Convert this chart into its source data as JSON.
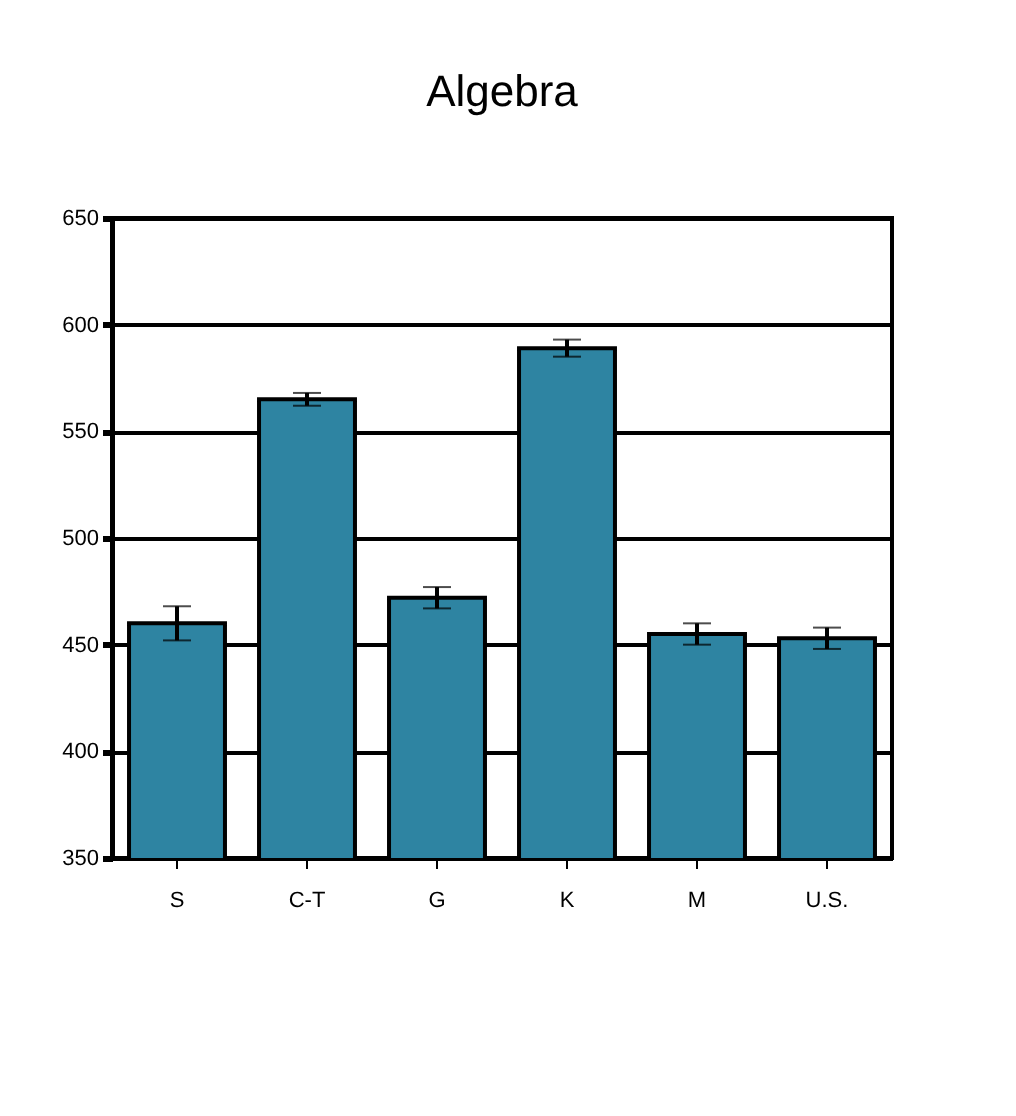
{
  "chart_data": {
    "type": "bar",
    "title": "Algebra",
    "categories": [
      "S",
      "C-T",
      "G",
      "K",
      "M",
      "U.S."
    ],
    "values": [
      460,
      565,
      472,
      589,
      455,
      453
    ],
    "errors": [
      8,
      3,
      5,
      4,
      5,
      5
    ],
    "color": "#2e84a2",
    "ylim": [
      350,
      650
    ],
    "yticks": [
      350,
      400,
      450,
      500,
      550,
      600,
      650
    ],
    "grid": "y"
  }
}
